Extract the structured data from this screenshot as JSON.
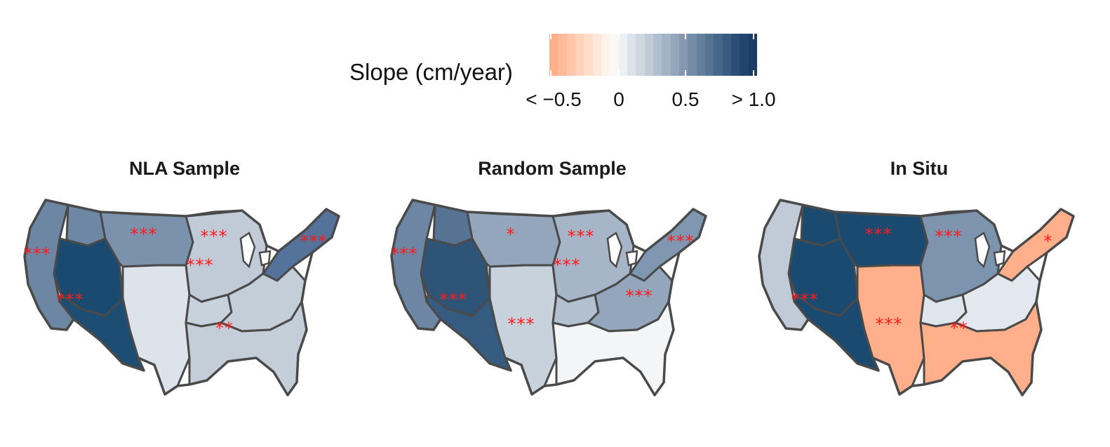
{
  "legend": {
    "title": "Slope (cm/year)",
    "ticks": [
      "< −0.5",
      "0",
      "0.5",
      "> 1.0"
    ],
    "colors": [
      "#ffb08a",
      "#ffbb99",
      "#ffc6a9",
      "#ffd2b9",
      "#ffddc9",
      "#ffe8d9",
      "#fff3ea",
      "#f9f8f6",
      "#eceff3",
      "#dde3ea",
      "#cfd7e1",
      "#c0cbd7",
      "#b1bfce",
      "#a2b3c5",
      "#93a6bb",
      "#8499b1",
      "#758ca7",
      "#65809d",
      "#567393",
      "#486689",
      "#3a5a80",
      "#2d4e77",
      "#22456f",
      "#193d67"
    ],
    "range": [
      -0.5,
      1.0
    ]
  },
  "panels": [
    {
      "title": "NLA Sample",
      "fills": {
        "west": "#6c86a3",
        "pnw": "#6d87a4",
        "greatbasin": "#1a4a70",
        "southwest": "#1e4d73",
        "northplains": "#7a92ac",
        "southplains": "#dde3ea",
        "greatlakes": "#c0cbd7",
        "northeast": "#54729a",
        "southeast": "#c3ced9",
        "ozark": "#c8d2dd",
        "midsouth": "#c3ced9"
      },
      "stars": {
        "west": "***",
        "greatbasin": "***",
        "northplains": "***",
        "greatlakes_n": "***",
        "greatlakes_s": "***",
        "northeast": "***",
        "ozark": "**"
      }
    },
    {
      "title": "Random Sample",
      "fills": {
        "west": "#6c86a3",
        "pnw": "#567393",
        "greatbasin": "#2e5478",
        "southwest": "#365b80",
        "northplains": "#93a6bb",
        "southplains": "#c8d2dd",
        "greatlakes": "#a6b6c8",
        "northeast": "#7f97b0",
        "southeast": "#f3f5f7",
        "ozark": "#b2c0cf",
        "midsouth": "#93a6bb"
      },
      "stars": {
        "west": "***",
        "southwest": "***",
        "northplains": "*",
        "greatlakes_n": "***",
        "greatlakes_s": "***",
        "northeast": "***",
        "southplains": "***",
        "midsouth": "***"
      }
    },
    {
      "title": "In Situ",
      "fills": {
        "west": "#c0cbd7",
        "pnw": "#1a4a70",
        "greatbasin": "#1a4a70",
        "southwest": "#1a4a70",
        "northplains": "#1a4a70",
        "southplains": "#ffb08a",
        "greatlakes": "#7d94ae",
        "northeast": "#ffb08a",
        "southeast": "#ffb08a",
        "ozark": "#dfe5ec",
        "midsouth": "#e3e8ee"
      },
      "stars": {
        "greatbasin": "***",
        "northplains": "***",
        "greatlakes_n": "***",
        "northeast": "*",
        "southplains": "***",
        "ozark": "**"
      }
    }
  ]
}
